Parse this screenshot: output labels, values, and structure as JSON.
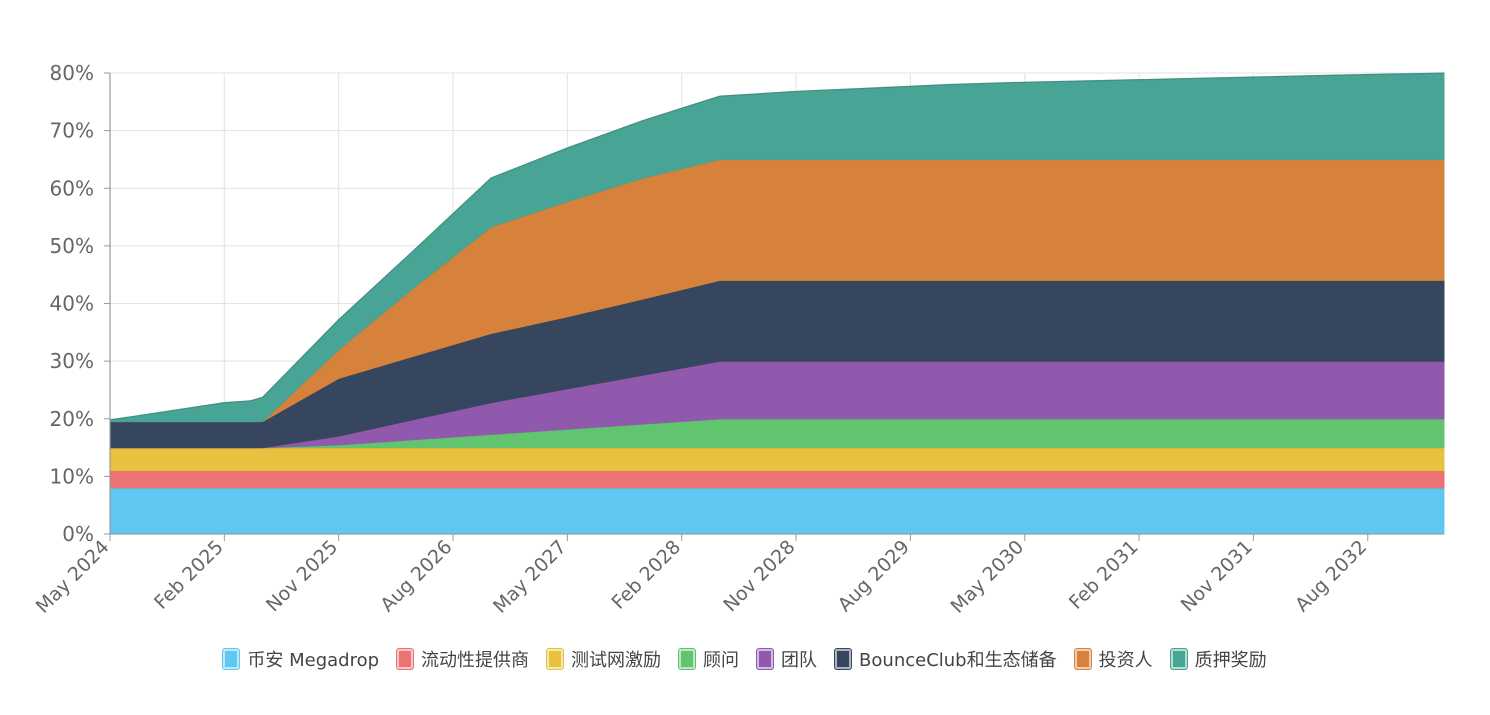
{
  "chart_data": {
    "type": "area",
    "stacked": true,
    "title": "",
    "xlabel": "",
    "ylabel": "",
    "ylim": [
      0,
      80
    ],
    "y_ticks": [
      0,
      10,
      20,
      30,
      40,
      50,
      60,
      70,
      80
    ],
    "y_tick_labels": [
      "0%",
      "10%",
      "20%",
      "30%",
      "40%",
      "50%",
      "60%",
      "70%",
      "80%"
    ],
    "x_ticks": [
      "May 2024",
      "Feb 2025",
      "Nov 2025",
      "Aug 2026",
      "May 2027",
      "Feb 2028",
      "Nov 2028",
      "Aug 2029",
      "May 2030",
      "Feb 2031",
      "Nov 2031",
      "Aug 2032"
    ],
    "grid": true,
    "legend_position": "bottom",
    "x": [
      "2024-05",
      "2025-02",
      "2025-04",
      "2025-05",
      "2025-11",
      "2026-05",
      "2026-11",
      "2027-05",
      "2027-11",
      "2028-05",
      "2028-11",
      "2029-05",
      "2029-11",
      "2030-05",
      "2030-11",
      "2031-05",
      "2031-11",
      "2032-05",
      "2033-02"
    ],
    "series": [
      {
        "name": "币安 Megadrop",
        "color": "#5ec8f2",
        "values": [
          8,
          8,
          8,
          8,
          8,
          8,
          8,
          8,
          8,
          8,
          8,
          8,
          8,
          8,
          8,
          8,
          8,
          8,
          8
        ]
      },
      {
        "name": "流动性提供商",
        "color": "#ea7474",
        "values": [
          3,
          3,
          3,
          3,
          3,
          3,
          3,
          3,
          3,
          3,
          3,
          3,
          3,
          3,
          3,
          3,
          3,
          3,
          3
        ]
      },
      {
        "name": "测试网激励",
        "color": "#e8c23e",
        "values": [
          4,
          4,
          4,
          4,
          4,
          4,
          4,
          4,
          4,
          4,
          4,
          4,
          4,
          4,
          4,
          4,
          4,
          4,
          4
        ]
      },
      {
        "name": "顾问",
        "color": "#62c46f",
        "values": [
          0,
          0,
          0,
          0,
          0.5,
          1.4,
          2.3,
          3.2,
          4.1,
          5,
          5,
          5,
          5,
          5,
          5,
          5,
          5,
          5,
          5
        ]
      },
      {
        "name": "团队",
        "color": "#9059ae",
        "values": [
          0,
          0,
          0,
          0,
          1.5,
          3.5,
          5.5,
          7,
          8.5,
          10,
          10,
          10,
          10,
          10,
          10,
          10,
          10,
          10,
          10
        ]
      },
      {
        "name": "BounceClub和生态储备",
        "color": "#36465e",
        "values": [
          4.5,
          4.5,
          4.5,
          4.5,
          10,
          11,
          12,
          12.5,
          13.2,
          14,
          14,
          14,
          14,
          14,
          14,
          14,
          14,
          14,
          14
        ]
      },
      {
        "name": "投资人",
        "color": "#d6823c",
        "values": [
          0,
          0,
          0,
          0,
          5,
          12,
          18.5,
          20,
          21,
          21,
          21,
          21,
          21,
          21,
          21,
          21,
          21,
          21,
          21
        ]
      },
      {
        "name": "质押奖励",
        "color": "#48a595",
        "values": [
          0.3,
          3.3,
          3.6,
          4.2,
          5.2,
          6.5,
          8.5,
          9.3,
          10,
          11,
          11.8,
          12.4,
          13,
          13.4,
          13.7,
          14,
          14.3,
          14.6,
          15
        ]
      }
    ]
  }
}
